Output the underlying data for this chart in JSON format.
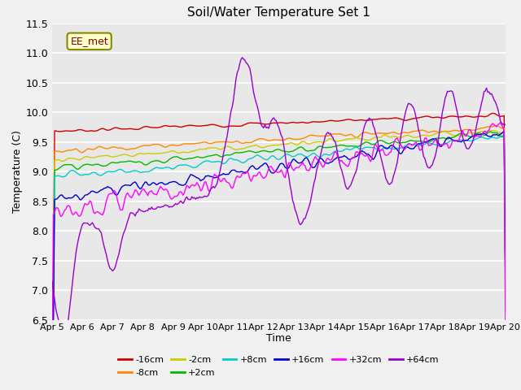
{
  "title": "Soil/Water Temperature Set 1",
  "xlabel": "Time",
  "ylabel": "Temperature (C)",
  "ylim": [
    6.5,
    11.5
  ],
  "xlim": [
    0,
    360
  ],
  "x_tick_labels": [
    "Apr 5",
    "Apr 6",
    "Apr 7",
    "Apr 8",
    "Apr 9",
    "Apr 10",
    "Apr 11",
    "Apr 12",
    "Apr 13",
    "Apr 14",
    "Apr 15",
    "Apr 16",
    "Apr 17",
    "Apr 18",
    "Apr 19",
    "Apr 20"
  ],
  "x_tick_positions": [
    0,
    24,
    48,
    72,
    96,
    120,
    144,
    168,
    192,
    216,
    240,
    264,
    288,
    312,
    336,
    360
  ],
  "series": [
    {
      "label": "-16cm",
      "color": "#cc0000"
    },
    {
      "label": "-8cm",
      "color": "#ff8800"
    },
    {
      "label": "-2cm",
      "color": "#cccc00"
    },
    {
      "label": "+2cm",
      "color": "#00bb00"
    },
    {
      "label": "+8cm",
      "color": "#00cccc"
    },
    {
      "label": "+16cm",
      "color": "#0000cc"
    },
    {
      "label": "+32cm",
      "color": "#ff00ff"
    },
    {
      "label": "+64cm",
      "color": "#9900cc"
    }
  ],
  "annotation_text": "EE_met",
  "bg_color": "#e8e8e8",
  "legend_ncol_row1": 6,
  "legend_ncol_row2": 2
}
